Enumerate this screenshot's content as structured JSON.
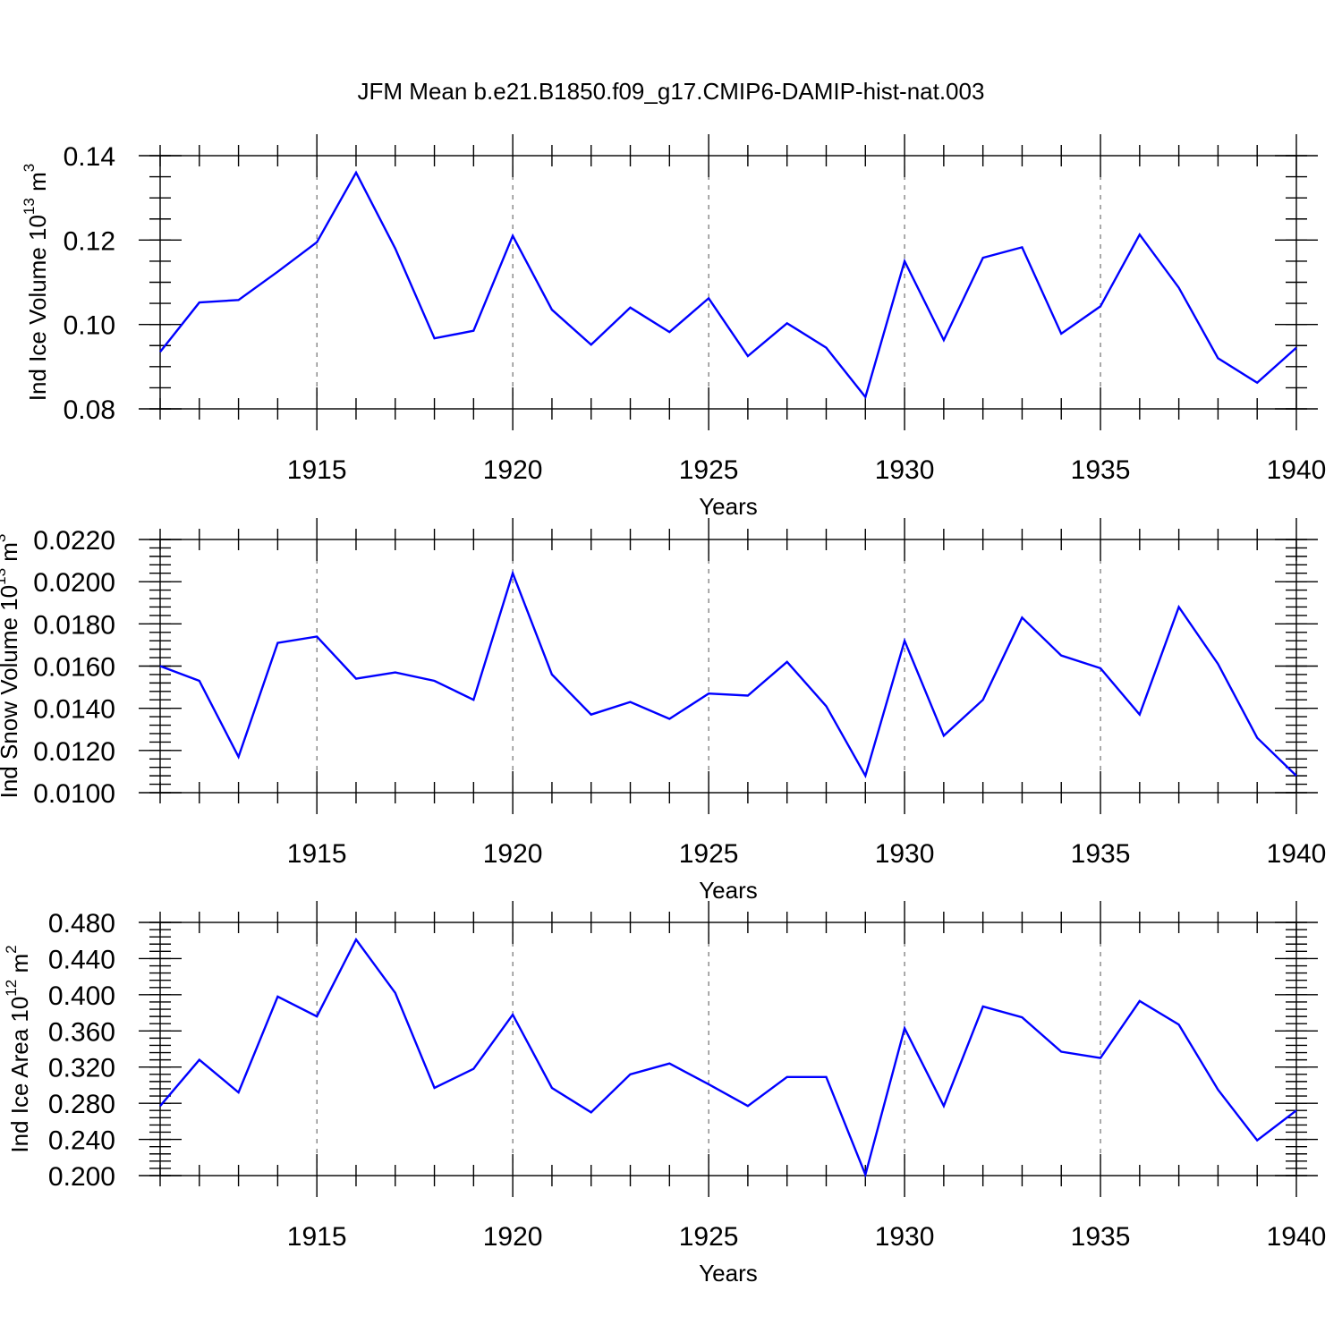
{
  "title": "JFM Mean b.e21.B1850.f09_g17.CMIP6-DAMIP-hist-nat.003",
  "colors": {
    "line": "#0000ff",
    "axis": "#000000",
    "grid": "#555555"
  },
  "chart_data": [
    {
      "type": "line",
      "ylabel": "Ind Ice Volume 10",
      "ylabel_exp": "13",
      "ylabel_unit": " m",
      "ylabel_unit_exp": "3",
      "xlabel": "Years",
      "xlim": [
        1911,
        1940
      ],
      "ylim": [
        0.08,
        0.14
      ],
      "yticks": [
        0.08,
        0.1,
        0.12,
        0.14
      ],
      "ytick_labels": [
        "0.08",
        "0.10",
        "0.12",
        "0.14"
      ],
      "yminor_step": 0.005,
      "xticks": [
        1915,
        1920,
        1925,
        1930,
        1935,
        1940
      ],
      "xtick_labels": [
        "1915",
        "1920",
        "1925",
        "1930",
        "1935",
        "1940"
      ],
      "grid_x": true,
      "x": [
        1911,
        1912,
        1913,
        1914,
        1915,
        1916,
        1917,
        1918,
        1919,
        1920,
        1921,
        1922,
        1923,
        1924,
        1925,
        1926,
        1927,
        1928,
        1929,
        1930,
        1931,
        1932,
        1933,
        1934,
        1935,
        1936,
        1937,
        1938,
        1939,
        1940
      ],
      "values": [
        0.0935,
        0.1052,
        0.1058,
        0.1125,
        0.1195,
        0.136,
        0.118,
        0.0967,
        0.0985,
        0.121,
        0.1035,
        0.0952,
        0.104,
        0.0982,
        0.1062,
        0.0925,
        0.1003,
        0.0945,
        0.0828,
        0.115,
        0.0963,
        0.1158,
        0.1183,
        0.0978,
        0.1043,
        0.1213,
        0.1087,
        0.092,
        0.0862,
        0.0945
      ]
    },
    {
      "type": "line",
      "ylabel": "Ind Snow Volume 10",
      "ylabel_exp": "13",
      "ylabel_unit": " m",
      "ylabel_unit_exp": "3",
      "xlabel": "Years",
      "xlim": [
        1911,
        1940
      ],
      "ylim": [
        0.01,
        0.022
      ],
      "yticks": [
        0.01,
        0.012,
        0.014,
        0.016,
        0.018,
        0.02,
        0.022
      ],
      "ytick_labels": [
        "0.0100",
        "0.0120",
        "0.0140",
        "0.0160",
        "0.0180",
        "0.0200",
        "0.0220"
      ],
      "yminor_step": 0.0004,
      "xticks": [
        1915,
        1920,
        1925,
        1930,
        1935,
        1940
      ],
      "xtick_labels": [
        "1915",
        "1920",
        "1925",
        "1930",
        "1935",
        "1940"
      ],
      "grid_x": true,
      "x": [
        1911,
        1912,
        1913,
        1914,
        1915,
        1916,
        1917,
        1918,
        1919,
        1920,
        1921,
        1922,
        1923,
        1924,
        1925,
        1926,
        1927,
        1928,
        1929,
        1930,
        1931,
        1932,
        1933,
        1934,
        1935,
        1936,
        1937,
        1938,
        1939,
        1940
      ],
      "values": [
        0.016,
        0.0153,
        0.0117,
        0.0171,
        0.0174,
        0.0154,
        0.0157,
        0.0153,
        0.0144,
        0.0204,
        0.0156,
        0.0137,
        0.0143,
        0.0135,
        0.0147,
        0.0146,
        0.0162,
        0.0141,
        0.0108,
        0.0172,
        0.0127,
        0.0144,
        0.0183,
        0.0165,
        0.0159,
        0.0137,
        0.0188,
        0.0161,
        0.0126,
        0.0108
      ]
    },
    {
      "type": "line",
      "ylabel": "Ind Ice Area 10",
      "ylabel_exp": "12",
      "ylabel_unit": " m",
      "ylabel_unit_exp": "2",
      "xlabel": "Years",
      "xlim": [
        1911,
        1940
      ],
      "ylim": [
        0.2,
        0.48
      ],
      "yticks": [
        0.2,
        0.24,
        0.28,
        0.32,
        0.36,
        0.4,
        0.44,
        0.48
      ],
      "ytick_labels": [
        "0.200",
        "0.240",
        "0.280",
        "0.320",
        "0.360",
        "0.400",
        "0.440",
        "0.480"
      ],
      "yminor_step": 0.008,
      "xticks": [
        1915,
        1920,
        1925,
        1930,
        1935,
        1940
      ],
      "xtick_labels": [
        "1915",
        "1920",
        "1925",
        "1930",
        "1935",
        "1940"
      ],
      "grid_x": true,
      "x": [
        1911,
        1912,
        1913,
        1914,
        1915,
        1916,
        1917,
        1918,
        1919,
        1920,
        1921,
        1922,
        1923,
        1924,
        1925,
        1926,
        1927,
        1928,
        1929,
        1930,
        1931,
        1932,
        1933,
        1934,
        1935,
        1936,
        1937,
        1938,
        1939,
        1940
      ],
      "values": [
        0.277,
        0.328,
        0.292,
        0.398,
        0.376,
        0.461,
        0.402,
        0.297,
        0.318,
        0.378,
        0.297,
        0.27,
        0.312,
        0.324,
        0.301,
        0.277,
        0.309,
        0.309,
        0.201,
        0.363,
        0.277,
        0.387,
        0.375,
        0.337,
        0.33,
        0.393,
        0.367,
        0.295,
        0.239,
        0.272
      ]
    }
  ]
}
